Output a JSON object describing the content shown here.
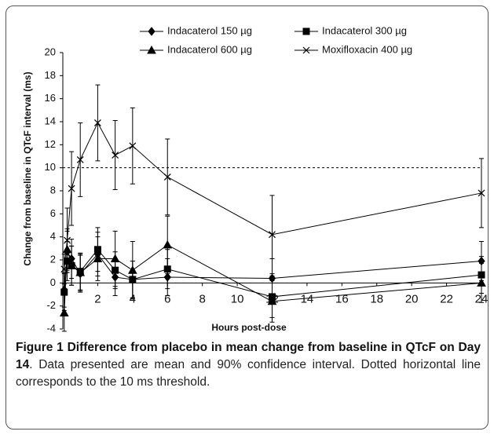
{
  "chart_data": {
    "type": "line",
    "y_label": "Change from baseline in QTcF interval (ms)",
    "x_label": "Hours post-dose",
    "xlim": [
      0,
      24
    ],
    "xticks": [
      2,
      4,
      6,
      8,
      10,
      12,
      14,
      16,
      18,
      20,
      22,
      24
    ],
    "ylim": [
      -4,
      20
    ],
    "yticks": [
      -4,
      -2,
      0,
      2,
      4,
      6,
      8,
      10,
      12,
      14,
      16,
      18,
      20
    ],
    "threshold": 10,
    "x": [
      0.08,
      0.25,
      0.5,
      1,
      2,
      3,
      4,
      6,
      12,
      24
    ],
    "series": [
      {
        "name": "Indacaterol 150 µg",
        "color": "#000000",
        "marker": "diamond",
        "values": [
          -0.6,
          2.7,
          2.1,
          0.8,
          2.5,
          0.5,
          0.3,
          0.5,
          0.4,
          1.9
        ],
        "errors": [
          1.5,
          1.8,
          1.7,
          1.6,
          1.9,
          1.6,
          1.6,
          1.6,
          1.7,
          1.7
        ]
      },
      {
        "name": "Indacaterol 300 µg",
        "color": "#000000",
        "marker": "square",
        "values": [
          -0.8,
          1.9,
          1.5,
          1.0,
          2.9,
          1.1,
          0.3,
          1.2,
          -1.2,
          0.7
        ],
        "errors": [
          1.6,
          1.7,
          1.7,
          1.6,
          1.9,
          1.6,
          1.6,
          1.7,
          1.8,
          1.6
        ]
      },
      {
        "name": "Indacaterol 600 µg",
        "color": "#000000",
        "marker": "triangle",
        "values": [
          -2.6,
          2.9,
          1.5,
          0.9,
          2.1,
          2.1,
          1.1,
          3.3,
          -1.6,
          0.0
        ],
        "errors": [
          1.6,
          1.8,
          1.7,
          1.6,
          1.9,
          2.4,
          2.5,
          2.5,
          1.8,
          1.7
        ]
      },
      {
        "name": "Moxifloxacin 400 µg",
        "color": "#000000",
        "marker": "x",
        "values": [
          1.2,
          3.7,
          8.2,
          10.7,
          13.9,
          11.1,
          11.9,
          9.2,
          4.2,
          7.8
        ],
        "errors": [
          1.3,
          2.8,
          3.2,
          3.2,
          3.3,
          3.0,
          3.3,
          3.3,
          3.4,
          3.0
        ]
      }
    ],
    "caption_title": "Figure 1 Difference from placebo in mean change from baseline in QTcF on Day 14",
    "caption_text": ". Data presented are mean and 90% confidence interval. Dotted horizontal line corresponds to the 10 ms threshold."
  }
}
